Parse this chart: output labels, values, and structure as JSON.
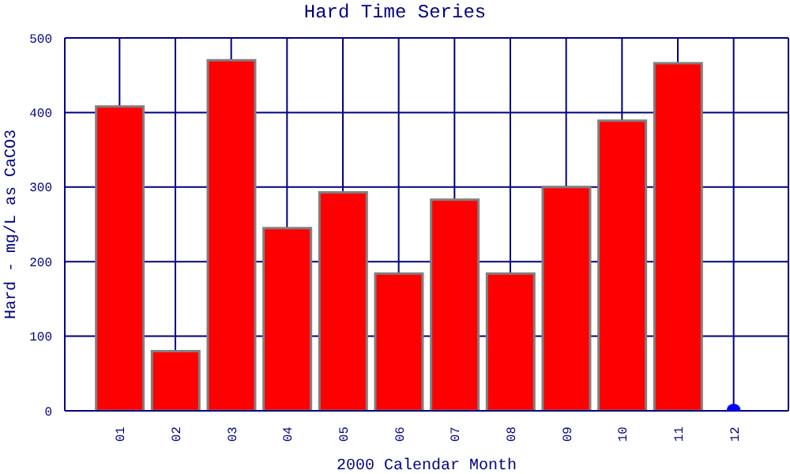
{
  "chart_data": {
    "type": "bar",
    "title": "Hard Time Series",
    "xlabel": "2000 Calendar Month",
    "ylabel": "Hard - mg/L as CaCO3",
    "categories": [
      "01",
      "02",
      "03",
      "04",
      "05",
      "06",
      "07",
      "08",
      "09",
      "10",
      "11",
      "12"
    ],
    "series": [
      {
        "color": "#ff0000",
        "values": [
          408,
          80,
          470,
          245,
          293,
          184,
          283,
          184,
          300,
          389,
          466,
          null
        ]
      },
      {
        "type": "scatter",
        "color": "#0000ff",
        "values": [
          null,
          null,
          null,
          null,
          null,
          null,
          null,
          null,
          null,
          null,
          null,
          0
        ]
      }
    ],
    "ylim": [
      0,
      500
    ],
    "yticks": [
      0,
      100,
      200,
      300,
      400,
      500
    ],
    "grid": true,
    "legend": false,
    "marker": "circle"
  }
}
